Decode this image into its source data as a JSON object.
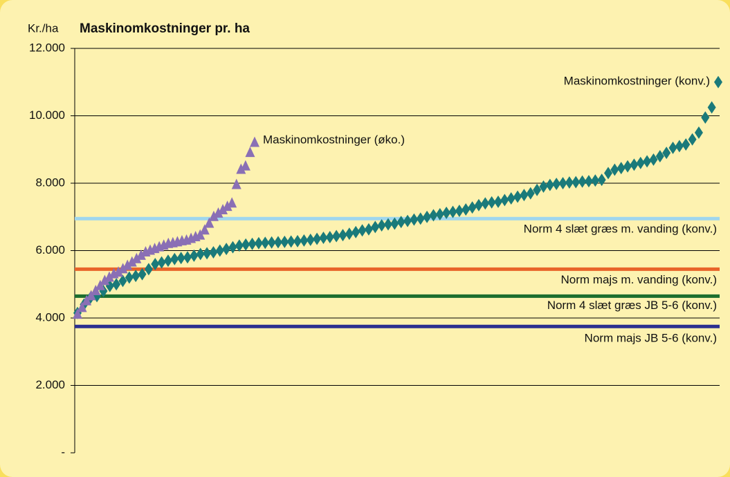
{
  "chart_data": {
    "type": "scatter",
    "title": "Maskinomkostninger pr. ha",
    "y_label": "Kr./ha",
    "ylim": [
      0,
      12000
    ],
    "yticks": [
      {
        "value": 0,
        "label": "-"
      },
      {
        "value": 2000,
        "label": "2.000"
      },
      {
        "value": 4000,
        "label": "4.000"
      },
      {
        "value": 6000,
        "label": "6.000"
      },
      {
        "value": 8000,
        "label": "8.000"
      },
      {
        "value": 10000,
        "label": "10.000"
      },
      {
        "value": 12000,
        "label": "12.000"
      }
    ],
    "grid": true,
    "series": [
      {
        "name": "Maskinomkostninger (konv.)",
        "color": "#1a7a7a",
        "marker": "diamond",
        "values": [
          4150,
          4400,
          4600,
          4650,
          4800,
          4950,
          5000,
          5100,
          5200,
          5250,
          5300,
          5450,
          5600,
          5650,
          5700,
          5750,
          5780,
          5800,
          5850,
          5900,
          5920,
          5950,
          6000,
          6050,
          6100,
          6150,
          6180,
          6200,
          6220,
          6230,
          6240,
          6250,
          6260,
          6270,
          6280,
          6300,
          6320,
          6350,
          6380,
          6400,
          6430,
          6460,
          6500,
          6550,
          6600,
          6630,
          6700,
          6750,
          6780,
          6800,
          6850,
          6880,
          6920,
          6950,
          7000,
          7050,
          7080,
          7120,
          7150,
          7180,
          7220,
          7280,
          7350,
          7400,
          7430,
          7450,
          7500,
          7550,
          7600,
          7650,
          7700,
          7800,
          7900,
          7950,
          7980,
          8000,
          8020,
          8030,
          8050,
          8060,
          8080,
          8100,
          8300,
          8400,
          8450,
          8500,
          8550,
          8600,
          8650,
          8700,
          8800,
          8900,
          9050,
          9100,
          9150,
          9300,
          9500,
          9950,
          10250,
          11000
        ]
      },
      {
        "name": "Maskinomkostninger (øko.)",
        "color": "#8a6fb5",
        "marker": "triangle",
        "values": [
          4100,
          4300,
          4500,
          4650,
          4800,
          4950,
          5100,
          5200,
          5300,
          5350,
          5450,
          5550,
          5650,
          5750,
          5850,
          5950,
          6000,
          6050,
          6100,
          6150,
          6200,
          6220,
          6250,
          6280,
          6300,
          6350,
          6400,
          6450,
          6600,
          6800,
          7000,
          7100,
          7200,
          7300,
          7400,
          7950,
          8400,
          8500,
          8900,
          9200
        ]
      }
    ],
    "reference_lines": [
      {
        "name": "Norm 4 slæt græs m. vanding (konv.)",
        "value": 6950,
        "color": "#9fd6ee"
      },
      {
        "name": "Norm majs m. vanding (konv.)",
        "value": 5450,
        "color": "#e8642a"
      },
      {
        "name": "Norm 4 slæt græs JB 5-6 (konv.)",
        "value": 4650,
        "color": "#1c6e2e"
      },
      {
        "name": "Norm majs JB 5-6 (konv.)",
        "value": 3750,
        "color": "#2a2f8f"
      }
    ]
  }
}
